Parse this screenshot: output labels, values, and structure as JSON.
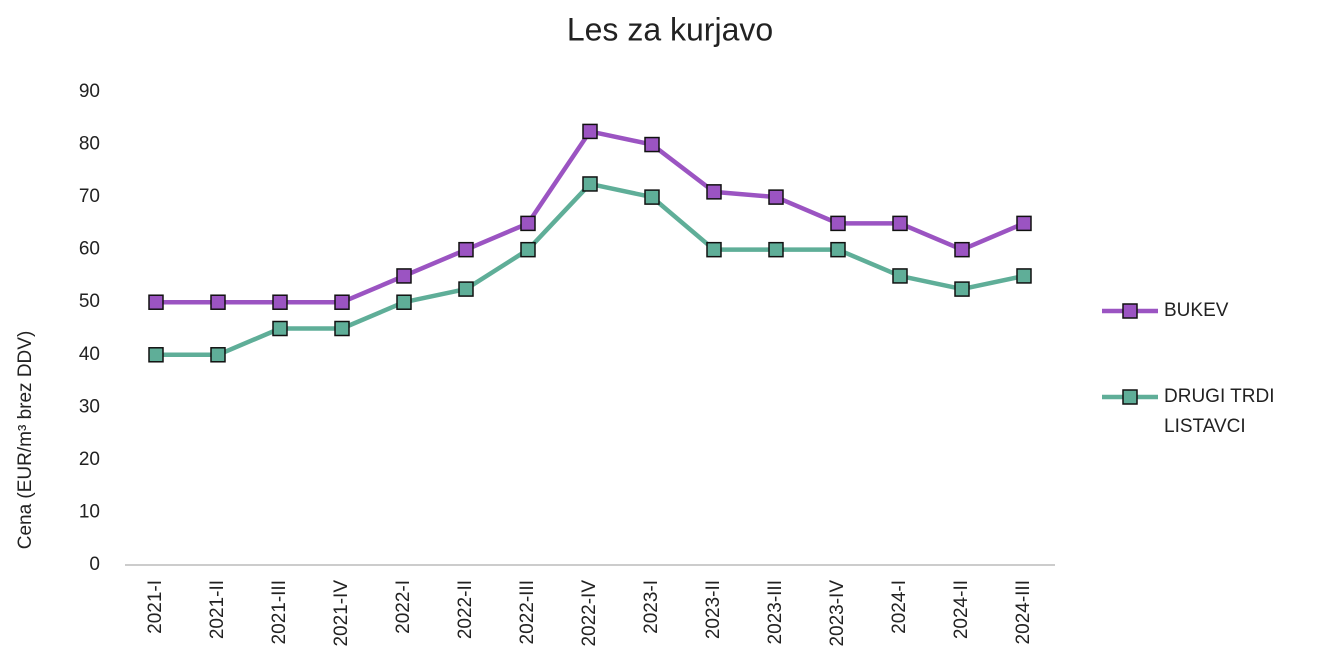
{
  "chart_data": {
    "type": "line",
    "title": "Les za kurjavo",
    "y_label": "Cena (EUR/m³ brez DDV)",
    "categories": [
      "2021-I",
      "2021-II",
      "2021-III",
      "2021-IV",
      "2022-I",
      "2022-II",
      "2022-III",
      "2022-IV",
      "2023-I",
      "2023-II",
      "2023-III",
      "2023-IV",
      "2024-I",
      "2024-II",
      "2024-III"
    ],
    "series": [
      {
        "name": "BUKEV",
        "color": "#9b54c2",
        "values": [
          50,
          50,
          50,
          50,
          55,
          60,
          65,
          82.5,
          80,
          71,
          70,
          65,
          65,
          60,
          65
        ]
      },
      {
        "name": "DRUGI TRDI LISTAVCI",
        "color": "#5fae98",
        "values": [
          40,
          40,
          45,
          45,
          50,
          52.5,
          60,
          72.5,
          70,
          60,
          60,
          60,
          55,
          52.5,
          55
        ]
      }
    ],
    "ylim": [
      0,
      90
    ],
    "yticks": [
      0,
      10,
      20,
      30,
      40,
      50,
      60,
      70,
      80,
      90
    ],
    "grid": false,
    "legend": "right"
  }
}
